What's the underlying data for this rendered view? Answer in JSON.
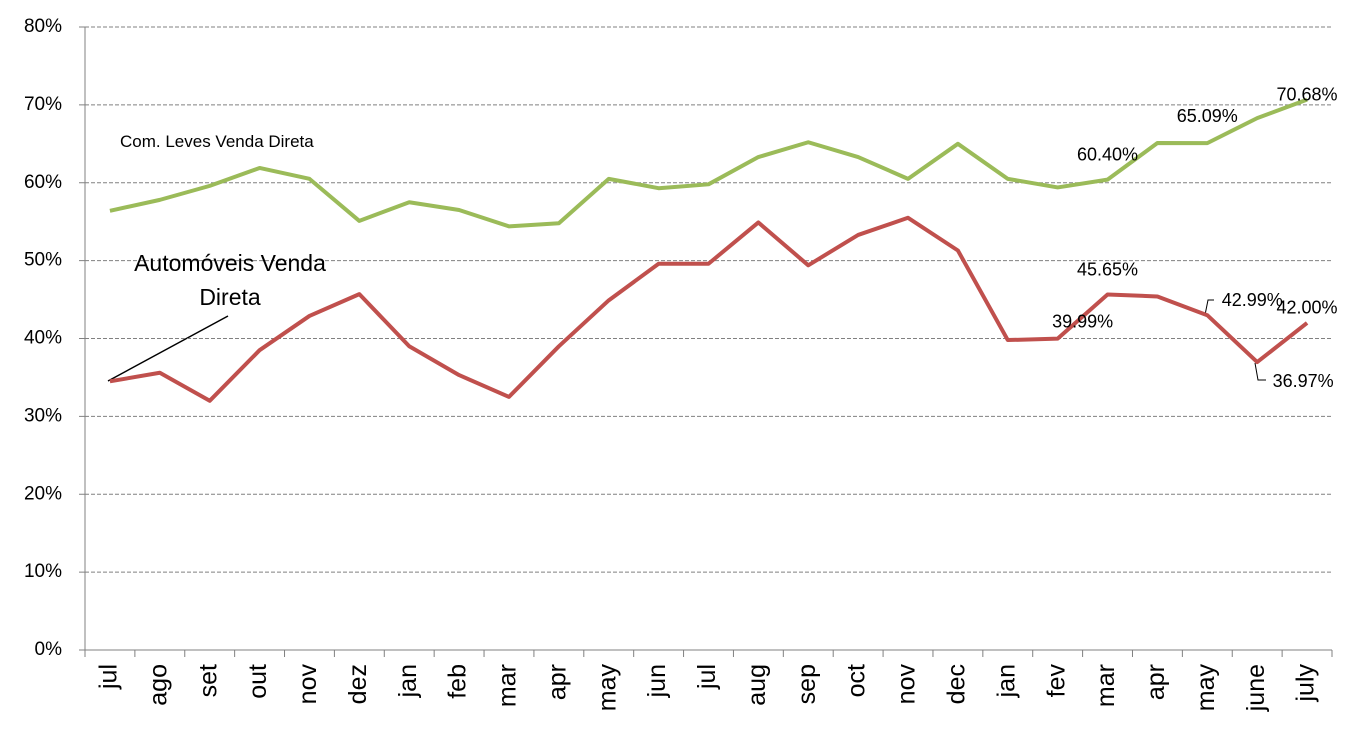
{
  "chart_data": {
    "type": "line",
    "categories": [
      "jul",
      "ago",
      "set",
      "out",
      "nov",
      "dez",
      "jan",
      "feb",
      "mar",
      "apr",
      "may",
      "jun",
      "jul",
      "aug",
      "sep",
      "oct",
      "nov",
      "dec",
      "jan",
      "fev",
      "mar",
      "apr",
      "may",
      "june",
      "july"
    ],
    "series": [
      {
        "name": "Com. Leves Venda Direta",
        "color": "#9bbb59",
        "values": [
          56.4,
          57.8,
          59.6,
          61.9,
          60.5,
          55.1,
          57.5,
          56.5,
          54.4,
          54.8,
          60.5,
          59.3,
          59.8,
          63.3,
          65.2,
          63.3,
          60.5,
          65.0,
          60.5,
          59.4,
          60.4,
          65.1,
          65.09,
          68.3,
          70.68
        ],
        "value_labels": [
          null,
          null,
          null,
          null,
          null,
          null,
          null,
          null,
          null,
          null,
          null,
          null,
          null,
          null,
          null,
          null,
          null,
          null,
          null,
          null,
          "60.40%",
          null,
          "65.09%",
          null,
          "70.68%"
        ]
      },
      {
        "name": "Automóveis Venda Direta",
        "color": "#c0504d",
        "values": [
          34.5,
          35.6,
          32.0,
          38.5,
          42.9,
          45.7,
          39.0,
          35.3,
          32.5,
          39.0,
          44.9,
          49.6,
          49.6,
          54.9,
          49.4,
          53.3,
          55.5,
          51.3,
          39.8,
          39.99,
          45.65,
          45.4,
          42.99,
          36.97,
          42.0
        ],
        "value_labels": [
          null,
          null,
          null,
          null,
          null,
          null,
          null,
          null,
          null,
          null,
          null,
          null,
          null,
          null,
          null,
          null,
          null,
          null,
          null,
          "39.99%",
          "45.65%",
          null,
          "42.99%",
          "36.97%",
          "42.00%"
        ]
      }
    ],
    "ylim": [
      0,
      80
    ],
    "yticks": [
      {
        "value": 0,
        "label": "0%"
      },
      {
        "value": 10,
        "label": "10%"
      },
      {
        "value": 20,
        "label": "20%"
      },
      {
        "value": 30,
        "label": "30%"
      },
      {
        "value": 40,
        "label": "40%"
      },
      {
        "value": 50,
        "label": "50%"
      },
      {
        "value": 60,
        "label": "60%"
      },
      {
        "value": 70,
        "label": "70%"
      },
      {
        "value": 80,
        "label": "80%"
      }
    ],
    "grid": true
  }
}
